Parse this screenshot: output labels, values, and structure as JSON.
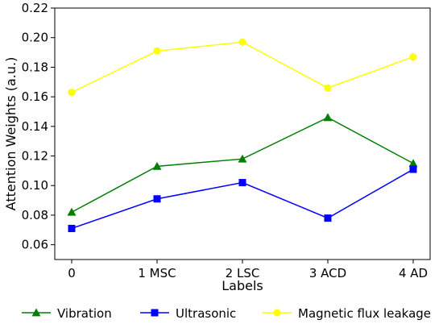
{
  "chart_data": {
    "type": "line",
    "xlabel": "Labels",
    "ylabel": "Attention Weights (a.u.)",
    "categories": [
      "0",
      "1 MSC",
      "2 LSC",
      "3 ACD",
      "4 AD"
    ],
    "ylim": [
      0.05,
      0.22
    ],
    "yticks": [
      0.06,
      0.08,
      0.1,
      0.12,
      0.14,
      0.16,
      0.18,
      0.2,
      0.22
    ],
    "ytick_labels": [
      "0.06",
      "0.08",
      "0.10",
      "0.12",
      "0.14",
      "0.16",
      "0.18",
      "0.20",
      "0.22"
    ],
    "grid": false,
    "legend_position": "bottom",
    "series": [
      {
        "name": "Vibration",
        "color": "#008000",
        "marker": "triangle",
        "values": [
          0.082,
          0.113,
          0.118,
          0.146,
          0.115
        ]
      },
      {
        "name": "Ultrasonic",
        "color": "#0000ff",
        "marker": "square",
        "values": [
          0.071,
          0.091,
          0.102,
          0.078,
          0.111
        ]
      },
      {
        "name": "Magnetic flux leakage",
        "color": "#ffff00",
        "marker": "circle",
        "values": [
          0.163,
          0.191,
          0.197,
          0.166,
          0.187
        ]
      }
    ]
  }
}
